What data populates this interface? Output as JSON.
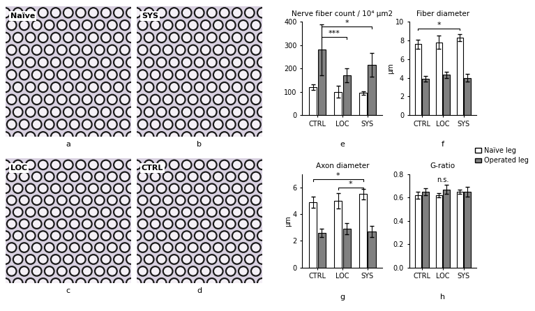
{
  "micrographs": [
    {
      "panel": "a",
      "label": "Naïve"
    },
    {
      "panel": "b",
      "label": "SYS"
    },
    {
      "panel": "c",
      "label": "LOC"
    },
    {
      "panel": "d",
      "label": "CTRL"
    }
  ],
  "legend": "right",
  "chart_data": [
    {
      "type": "bar",
      "panel": "e",
      "title": "Nerve fiber count / 10⁴ μm2",
      "categories": [
        "CTRL",
        "LOC",
        "SYS"
      ],
      "series": [
        {
          "name": "Naïve leg",
          "color": "#ffffff",
          "values": [
            120,
            100,
            95
          ],
          "errors": [
            12,
            25,
            8
          ]
        },
        {
          "name": "Operated leg",
          "color": "#808080",
          "values": [
            280,
            170,
            215
          ],
          "errors": [
            110,
            30,
            50
          ]
        }
      ],
      "ylim": [
        0,
        400
      ],
      "yticks": [
        0,
        100,
        200,
        300,
        400
      ],
      "comparisons": [
        {
          "from": [
            "CTRL",
            "Operated leg"
          ],
          "to": [
            "LOC",
            "Operated leg"
          ],
          "y": 335,
          "text": "***"
        },
        {
          "from": [
            "CTRL",
            "Operated leg"
          ],
          "to": [
            "SYS",
            "Operated leg"
          ],
          "y": 380,
          "text": "*"
        }
      ]
    },
    {
      "type": "bar",
      "panel": "f",
      "title": "Fiber diameter",
      "y_label": "μm",
      "categories": [
        "CTRL",
        "LOC",
        "SYS"
      ],
      "series": [
        {
          "name": "Naïve leg",
          "color": "#ffffff",
          "values": [
            7.6,
            7.8,
            8.3
          ],
          "errors": [
            0.5,
            0.7,
            0.4
          ]
        },
        {
          "name": "Operated leg",
          "color": "#808080",
          "values": [
            3.9,
            4.3,
            4.0
          ],
          "errors": [
            0.3,
            0.3,
            0.4
          ]
        }
      ],
      "ylim": [
        0,
        10
      ],
      "yticks": [
        0,
        2,
        4,
        6,
        8,
        10
      ],
      "comparisons": [
        {
          "from": [
            "CTRL",
            "Naïve leg"
          ],
          "to": [
            "SYS",
            "Naïve leg"
          ],
          "y": 9.3,
          "text": "*"
        }
      ]
    },
    {
      "type": "bar",
      "panel": "g",
      "title": "Axon diameter",
      "y_label": "μm",
      "categories": [
        "CTRL",
        "LOC",
        "SYS"
      ],
      "series": [
        {
          "name": "Naïve leg",
          "color": "#ffffff",
          "values": [
            4.9,
            5.0,
            5.5
          ],
          "errors": [
            0.4,
            0.6,
            0.4
          ]
        },
        {
          "name": "Operated leg",
          "color": "#808080",
          "values": [
            2.6,
            2.9,
            2.7
          ],
          "errors": [
            0.3,
            0.4,
            0.4
          ]
        }
      ],
      "ylim": [
        0,
        7
      ],
      "yticks": [
        0,
        2,
        4,
        6
      ],
      "comparisons": [
        {
          "from": [
            "CTRL",
            "Naïve leg"
          ],
          "to": [
            "SYS",
            "Naïve leg"
          ],
          "y": 6.6,
          "text": "*"
        },
        {
          "from": [
            "LOC",
            "Naïve leg"
          ],
          "to": [
            "SYS",
            "Naïve leg"
          ],
          "y": 6.0,
          "text": "*"
        }
      ]
    },
    {
      "type": "bar",
      "panel": "h",
      "title": "G-ratio",
      "categories": [
        "CTRL",
        "LOC",
        "SYS"
      ],
      "series": [
        {
          "name": "Naïve leg",
          "color": "#ffffff",
          "values": [
            0.62,
            0.62,
            0.65
          ],
          "errors": [
            0.03,
            0.02,
            0.02
          ]
        },
        {
          "name": "Operated leg",
          "color": "#808080",
          "values": [
            0.65,
            0.67,
            0.65
          ],
          "errors": [
            0.03,
            0.04,
            0.04
          ]
        }
      ],
      "ylim": [
        0,
        0.8
      ],
      "yticks": [
        {
          "value": 0,
          "label": "0.0"
        },
        0.2,
        0.4,
        0.6,
        0.8
      ],
      "annotations": [
        {
          "text": "n.s.",
          "x": "LOC",
          "y": 0.72
        }
      ]
    }
  ]
}
